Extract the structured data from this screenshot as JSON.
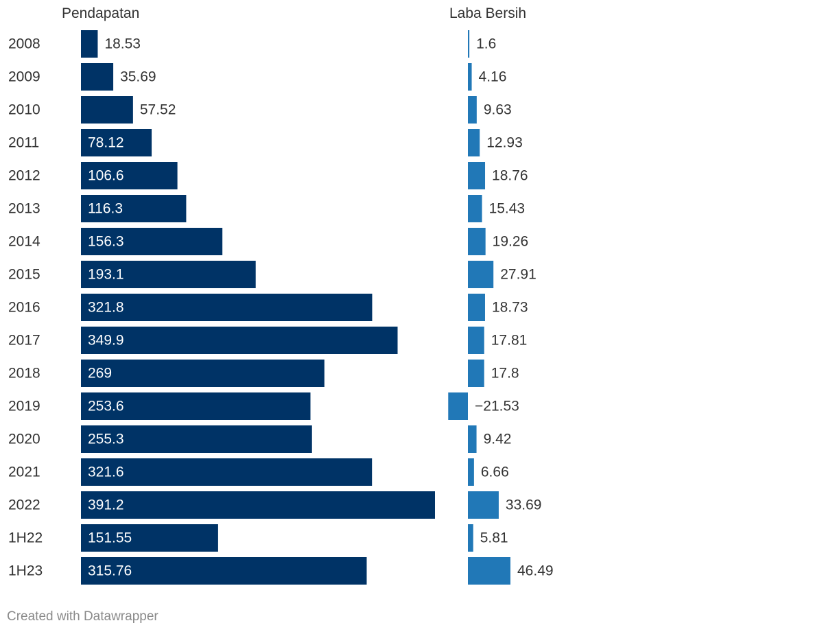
{
  "chart_data": {
    "type": "bar",
    "orientation": "horizontal",
    "categories": [
      "2008",
      "2009",
      "2010",
      "2011",
      "2012",
      "2013",
      "2014",
      "2015",
      "2016",
      "2017",
      "2018",
      "2019",
      "2020",
      "2021",
      "2022",
      "1H22",
      "1H23"
    ],
    "series": [
      {
        "name": "Pendapatan",
        "color": "#003366",
        "values": [
          18.53,
          35.69,
          57.52,
          78.12,
          106.6,
          116.3,
          156.3,
          193.1,
          321.8,
          349.9,
          269,
          253.6,
          255.3,
          321.6,
          391.2,
          151.55,
          315.76
        ],
        "labels": [
          "18.53",
          "35.69",
          "57.52",
          "78.12",
          "106.6",
          "116.3",
          "156.3",
          "193.1",
          "321.8",
          "349.9",
          "269",
          "253.6",
          "255.3",
          "321.6",
          "391.2",
          "151.55",
          "315.76"
        ]
      },
      {
        "name": "Laba Bersih",
        "color": "#2178b7",
        "values": [
          1.6,
          4.16,
          9.63,
          12.93,
          18.76,
          15.43,
          19.26,
          27.91,
          18.73,
          17.81,
          17.8,
          -21.53,
          9.42,
          6.66,
          33.69,
          5.81,
          46.49
        ],
        "labels": [
          "1.6",
          "4.16",
          "9.63",
          "12.93",
          "18.76",
          "15.43",
          "19.26",
          "27.91",
          "18.73",
          "17.81",
          "17.8",
          "−21.53",
          "9.42",
          "6.66",
          "33.69",
          "5.81",
          "46.49"
        ]
      }
    ],
    "title": "",
    "xlabel": "",
    "ylabel": ""
  },
  "footer": "Created with Datawrapper"
}
